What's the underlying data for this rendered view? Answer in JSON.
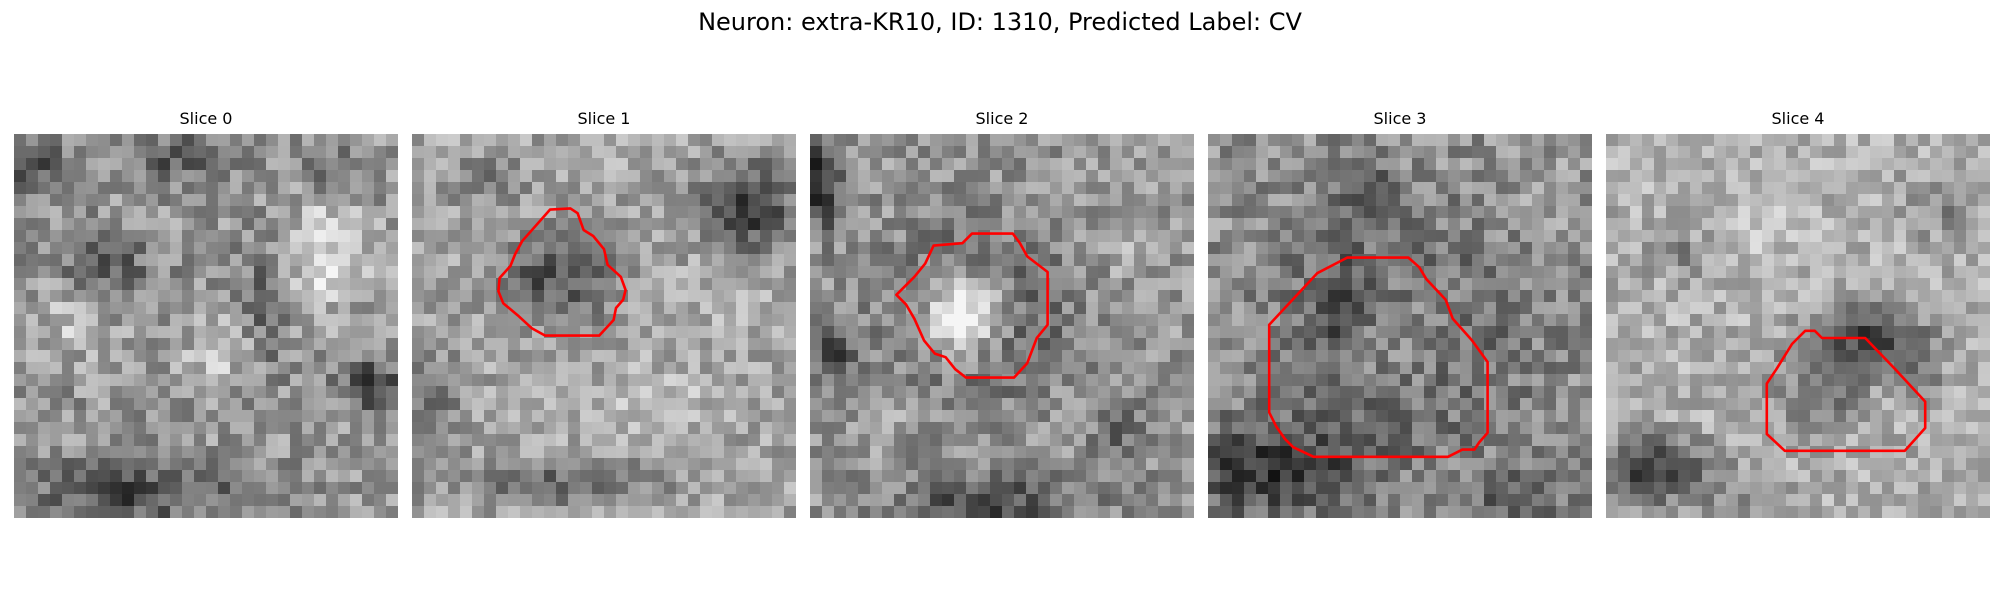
{
  "figure": {
    "title": "Neuron: extra-KR10, ID: 1310, Predicted Label: CV"
  },
  "panels": [
    {
      "title": "Slice 0",
      "has_contour": false
    },
    {
      "title": "Slice 1",
      "has_contour": true
    },
    {
      "title": "Slice 2",
      "has_contour": true
    },
    {
      "title": "Slice 3",
      "has_contour": true
    },
    {
      "title": "Slice 4",
      "has_contour": true
    }
  ],
  "colors": {
    "contour": "#ff0000",
    "colormap": "grayscale"
  }
}
